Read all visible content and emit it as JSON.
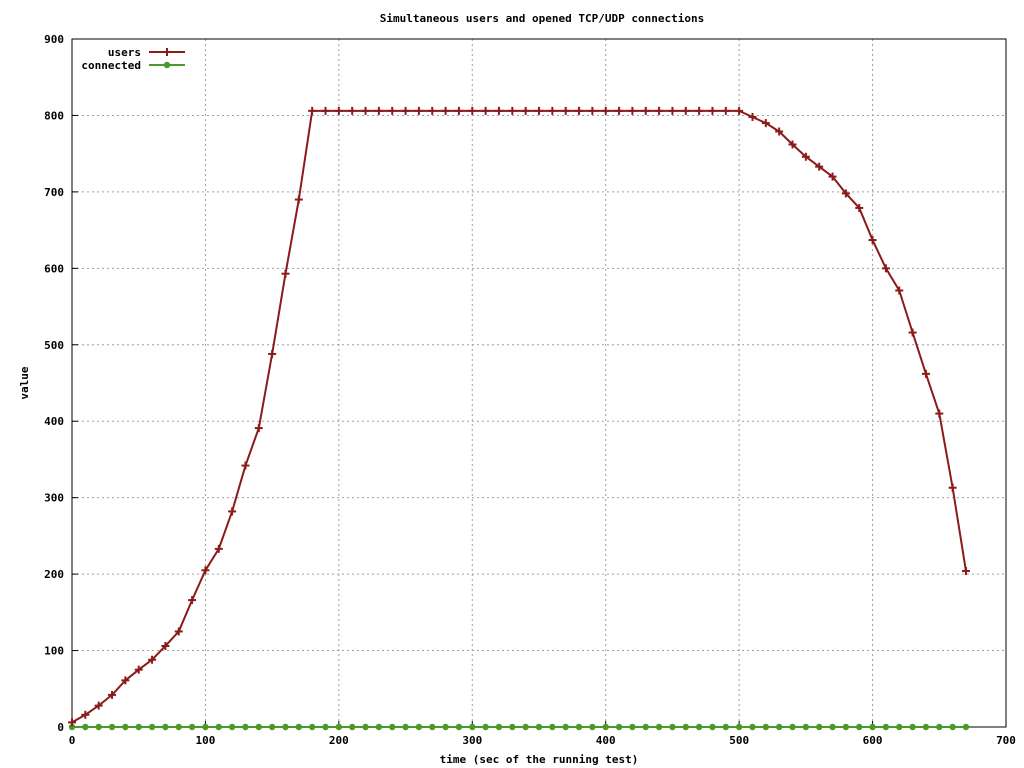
{
  "chart_data": {
    "type": "line",
    "title": "Simultaneous users and opened TCP/UDP connections",
    "xlabel": "time (sec of the running test)",
    "ylabel": "value",
    "xlim": [
      0,
      700
    ],
    "ylim": [
      0,
      900
    ],
    "xticks": [
      0,
      100,
      200,
      300,
      400,
      500,
      600,
      700
    ],
    "yticks": [
      0,
      100,
      200,
      300,
      400,
      500,
      600,
      700,
      800,
      900
    ],
    "grid": true,
    "legend_position": "top-left",
    "series": [
      {
        "name": "users",
        "color": "#8b1a1a",
        "marker": "plus",
        "x": [
          0,
          10,
          20,
          30,
          40,
          50,
          60,
          70,
          80,
          90,
          100,
          110,
          120,
          130,
          140,
          150,
          160,
          170,
          180,
          190,
          200,
          210,
          220,
          230,
          240,
          250,
          260,
          270,
          280,
          290,
          300,
          310,
          320,
          330,
          340,
          350,
          360,
          370,
          380,
          390,
          400,
          410,
          420,
          430,
          440,
          450,
          460,
          470,
          480,
          490,
          500,
          510,
          520,
          530,
          540,
          550,
          560,
          570,
          580,
          590,
          600,
          610,
          620,
          630,
          640,
          650,
          660,
          670
        ],
        "values": [
          6,
          16,
          28,
          42,
          61,
          75,
          88,
          106,
          125,
          166,
          205,
          233,
          282,
          342,
          391,
          488,
          593,
          690,
          806,
          806,
          806,
          806,
          806,
          806,
          806,
          806,
          806,
          806,
          806,
          806,
          806,
          806,
          806,
          806,
          806,
          806,
          806,
          806,
          806,
          806,
          806,
          806,
          806,
          806,
          806,
          806,
          806,
          806,
          806,
          806,
          806,
          798,
          790,
          779,
          762,
          746,
          733,
          720,
          698,
          679,
          637,
          600,
          571,
          516,
          462,
          410,
          313,
          204
        ]
      },
      {
        "name": "connected",
        "color": "#4a9a2a",
        "marker": "circle",
        "x": [
          0,
          10,
          20,
          30,
          40,
          50,
          60,
          70,
          80,
          90,
          100,
          110,
          120,
          130,
          140,
          150,
          160,
          170,
          180,
          190,
          200,
          210,
          220,
          230,
          240,
          250,
          260,
          270,
          280,
          290,
          300,
          310,
          320,
          330,
          340,
          350,
          360,
          370,
          380,
          390,
          400,
          410,
          420,
          430,
          440,
          450,
          460,
          470,
          480,
          490,
          500,
          510,
          520,
          530,
          540,
          550,
          560,
          570,
          580,
          590,
          600,
          610,
          620,
          630,
          640,
          650,
          660,
          670
        ],
        "values": [
          0,
          0,
          0,
          0,
          0,
          0,
          0,
          0,
          0,
          0,
          0,
          0,
          0,
          0,
          0,
          0,
          0,
          0,
          0,
          0,
          0,
          0,
          0,
          0,
          0,
          0,
          0,
          0,
          0,
          0,
          0,
          0,
          0,
          0,
          0,
          0,
          0,
          0,
          0,
          0,
          0,
          0,
          0,
          0,
          0,
          0,
          0,
          0,
          0,
          0,
          0,
          0,
          0,
          0,
          0,
          0,
          0,
          0,
          0,
          0,
          0,
          0,
          0,
          0,
          0,
          0,
          0,
          0
        ]
      }
    ]
  }
}
